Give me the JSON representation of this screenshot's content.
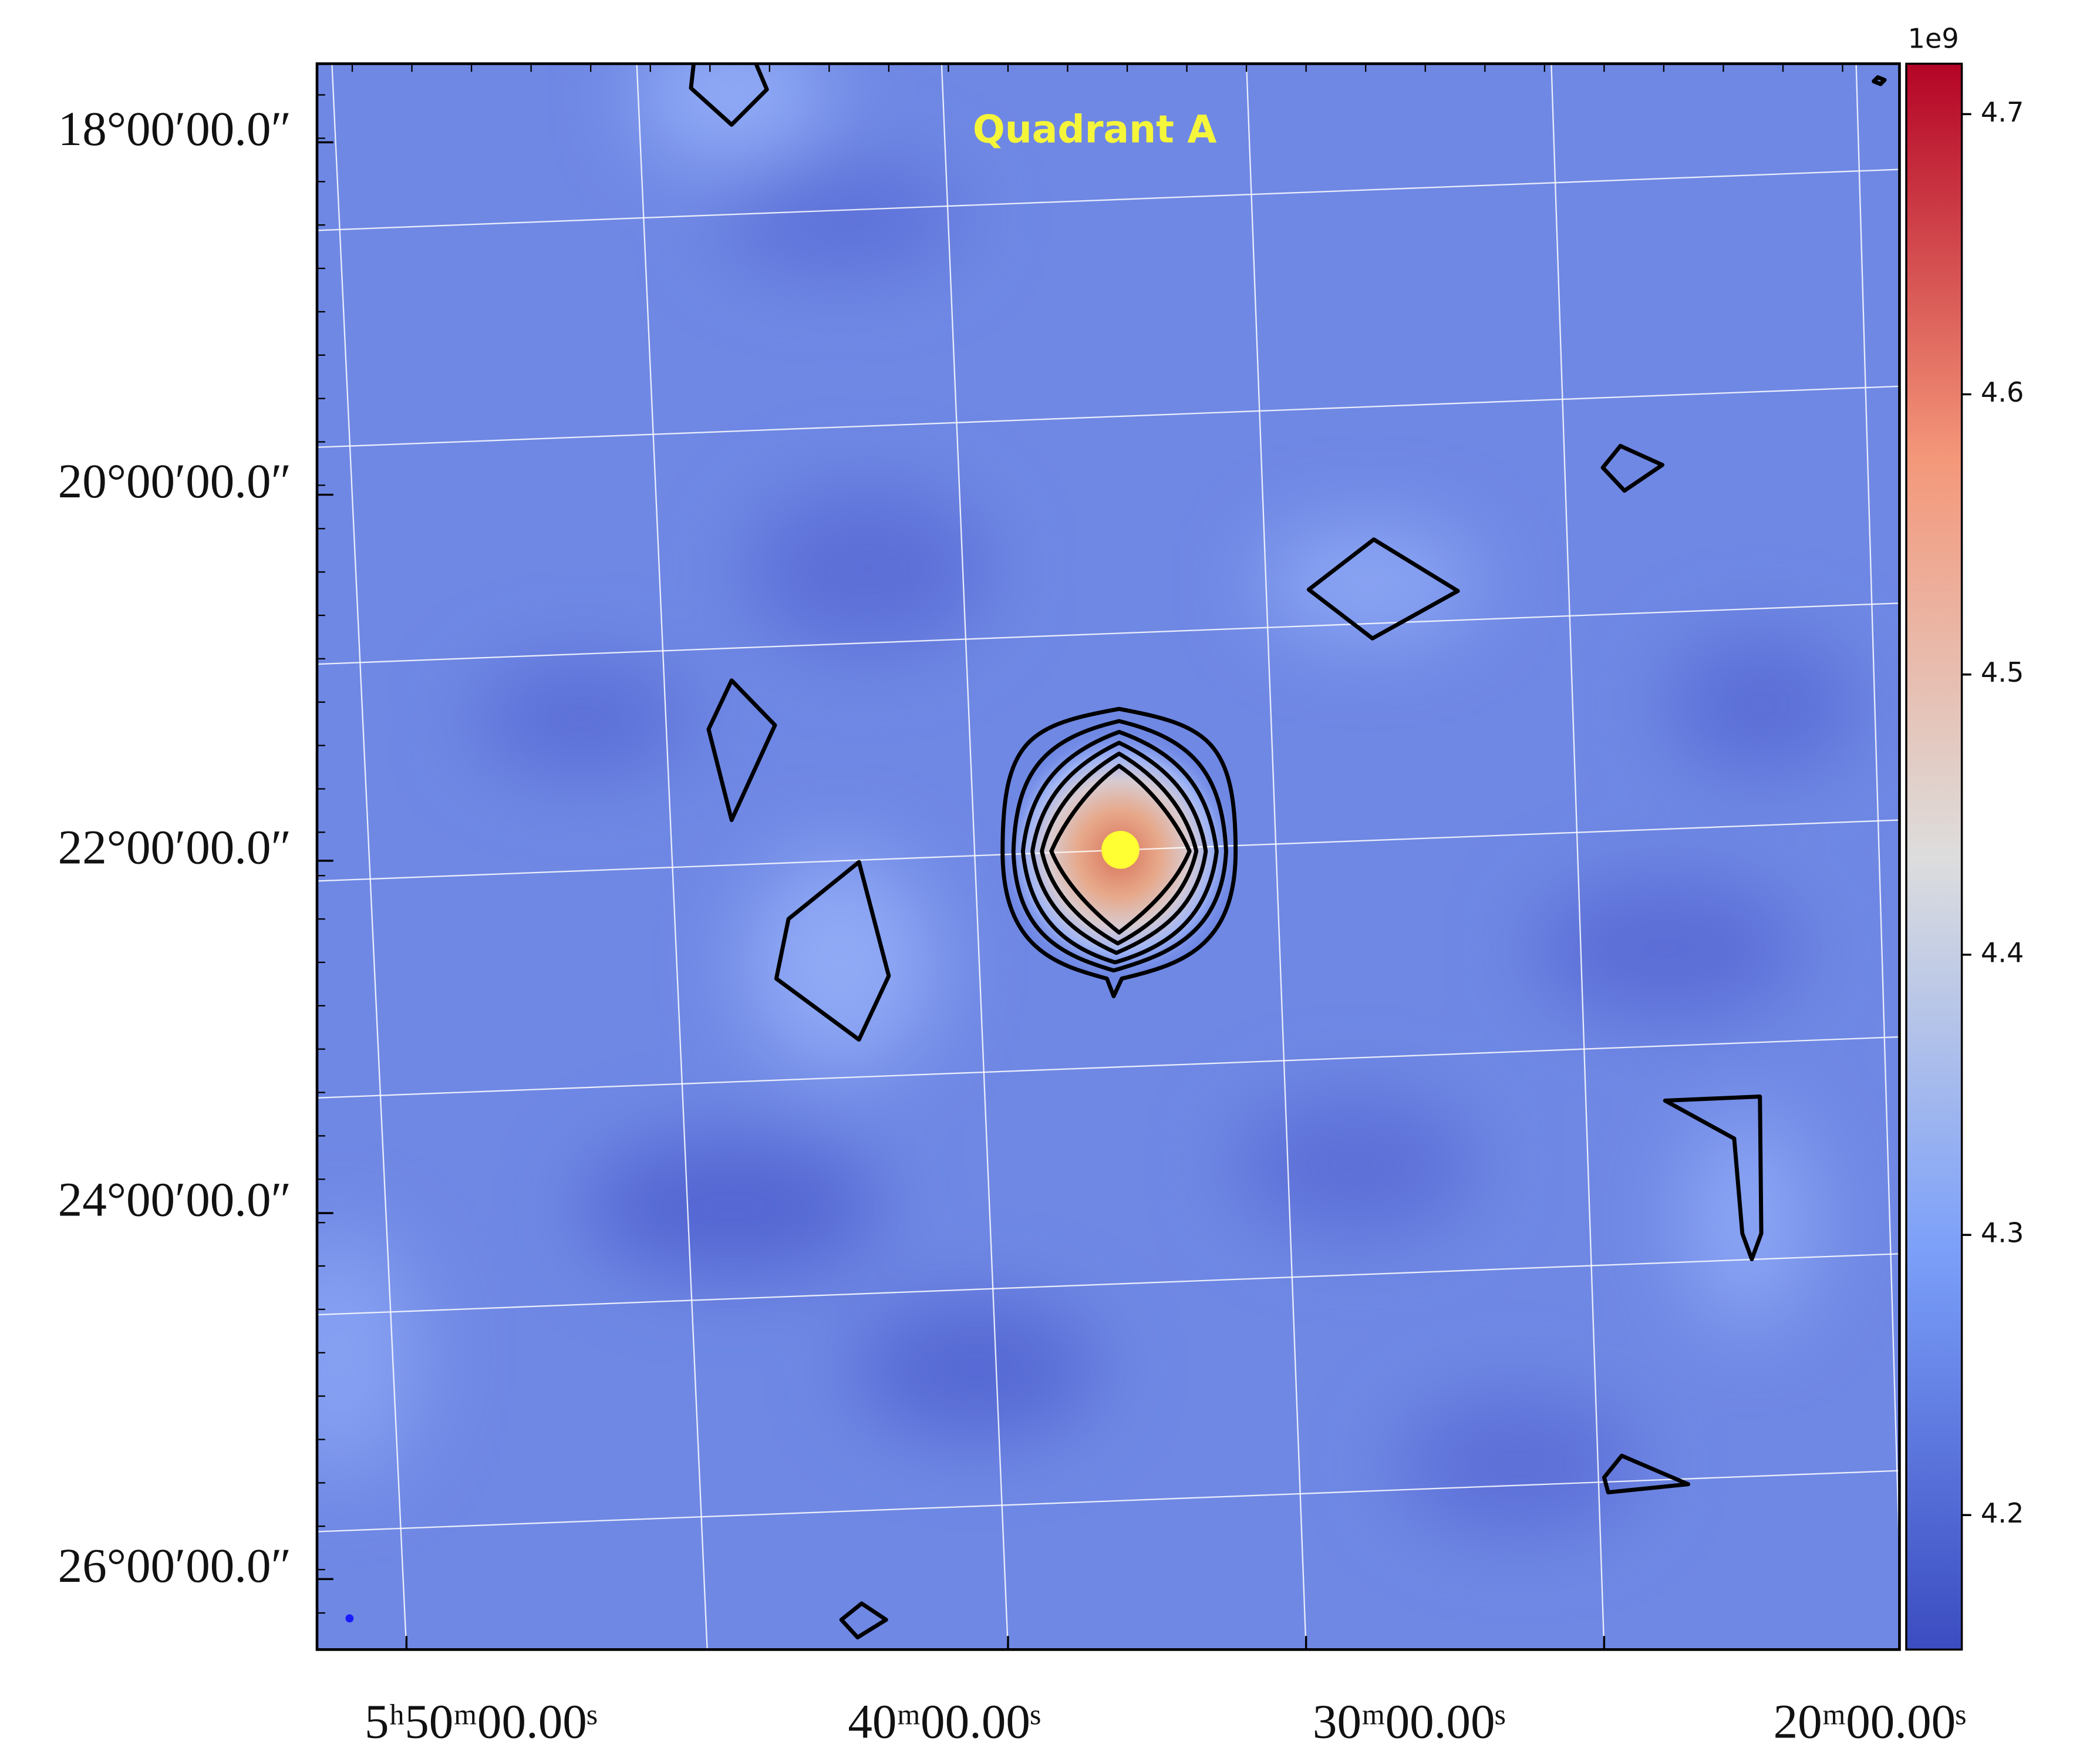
{
  "chart_data": {
    "type": "image",
    "title": "Quadrant A",
    "x_tick_labels": [
      "5ʰ50ᵐ00.00ˢ",
      "40ᵐ00.00ˢ",
      "30ᵐ00.00ˢ",
      "20ᵐ00.00ˢ"
    ],
    "y_tick_labels": [
      "18°00′00.0″",
      "20°00′00.0″",
      "22°00′00.0″",
      "24°00′00.0″",
      "26°00′00.0″"
    ],
    "grid": true,
    "colorbar": {
      "offset_label": "1e9",
      "colormap": "coolwarm",
      "ylim": [
        4.152,
        4.718
      ],
      "yticks": [
        4.2,
        4.3,
        4.4,
        4.5,
        4.6,
        4.7
      ]
    }
  }
}
